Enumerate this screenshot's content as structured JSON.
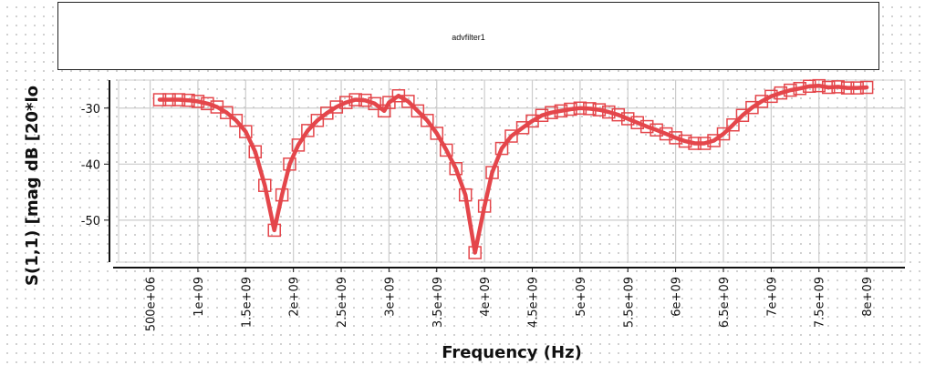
{
  "title_box": {
    "text": "advfilter1"
  },
  "colors": {
    "series": "#e4464b",
    "grid": "#cccccc",
    "axis": "#111111"
  },
  "chart_data": {
    "type": "line",
    "xlabel": "Frequency (Hz)",
    "ylabel": "S(1,1) [mag dB [20*lo",
    "xlim": [
      170000000,
      8400000000
    ],
    "ylim": [
      -57.5,
      -25
    ],
    "grid": true,
    "marker": "square",
    "x_ticks": [
      {
        "value": 500000000,
        "label": "500e+06"
      },
      {
        "value": 1000000000,
        "label": "1e+09"
      },
      {
        "value": 1500000000,
        "label": "1.5e+09"
      },
      {
        "value": 2000000000,
        "label": "2e+09"
      },
      {
        "value": 2500000000,
        "label": "2.5e+09"
      },
      {
        "value": 3000000000,
        "label": "3e+09"
      },
      {
        "value": 3500000000,
        "label": "3.5e+09"
      },
      {
        "value": 4000000000,
        "label": "4e+09"
      },
      {
        "value": 4500000000,
        "label": "4.5e+09"
      },
      {
        "value": 5000000000,
        "label": "5e+09"
      },
      {
        "value": 5500000000,
        "label": "5.5e+09"
      },
      {
        "value": 6000000000,
        "label": "6e+09"
      },
      {
        "value": 6500000000,
        "label": "6.5e+09"
      },
      {
        "value": 7000000000,
        "label": "7e+09"
      },
      {
        "value": 7500000000,
        "label": "7.5e+09"
      },
      {
        "value": 8000000000,
        "label": "8e+09"
      }
    ],
    "y_ticks": [
      {
        "value": -30,
        "label": "-30"
      },
      {
        "value": -40,
        "label": "-40"
      },
      {
        "value": -50,
        "label": "-50"
      }
    ],
    "series": [
      {
        "x": [
          600000000,
          700000000,
          800000000,
          900000000,
          1000000000,
          1100000000,
          1200000000,
          1300000000,
          1400000000,
          1500000000,
          1600000000,
          1700000000,
          1800000000,
          1880000000,
          1960000000,
          2050000000,
          2150000000,
          2250000000,
          2350000000,
          2450000000,
          2550000000,
          2650000000,
          2750000000,
          2850000000,
          2950000000,
          3000000000,
          3100000000,
          3200000000,
          3300000000,
          3400000000,
          3500000000,
          3600000000,
          3700000000,
          3800000000,
          3900000000,
          4000000000,
          4080000000,
          4180000000,
          4280000000,
          4400000000,
          4500000000,
          4600000000,
          4700000000,
          4800000000,
          4900000000,
          5000000000,
          5100000000,
          5200000000,
          5300000000,
          5400000000,
          5500000000,
          5600000000,
          5700000000,
          5800000000,
          5900000000,
          6000000000,
          6100000000,
          6200000000,
          6300000000,
          6400000000,
          6500000000,
          6600000000,
          6700000000,
          6800000000,
          6900000000,
          7000000000,
          7100000000,
          7200000000,
          7300000000,
          7400000000,
          7500000000,
          7600000000,
          7700000000,
          7800000000,
          7900000000,
          8000000000
        ],
        "y": [
          -28.5,
          -28.5,
          -28.5,
          -28.6,
          -28.8,
          -29.2,
          -29.8,
          -30.8,
          -32.2,
          -34.2,
          -37.8,
          -43.8,
          -51.8,
          -45.5,
          -40.0,
          -36.6,
          -34.0,
          -32.2,
          -30.9,
          -29.8,
          -29.0,
          -28.5,
          -28.6,
          -29.2,
          -30.5,
          -29.0,
          -27.8,
          -28.8,
          -30.5,
          -32.2,
          -34.5,
          -37.5,
          -40.8,
          -45.5,
          -55.8,
          -47.5,
          -41.5,
          -37.2,
          -35.0,
          -33.5,
          -32.3,
          -31.3,
          -30.8,
          -30.5,
          -30.2,
          -30.0,
          -30.1,
          -30.3,
          -30.7,
          -31.2,
          -31.9,
          -32.6,
          -33.3,
          -33.9,
          -34.6,
          -35.3,
          -35.9,
          -36.3,
          -36.3,
          -35.8,
          -34.6,
          -33.0,
          -31.3,
          -29.9,
          -28.8,
          -27.9,
          -27.3,
          -26.8,
          -26.5,
          -26.1,
          -26.0,
          -26.3,
          -26.2,
          -26.4,
          -26.4,
          -26.3
        ]
      }
    ]
  }
}
